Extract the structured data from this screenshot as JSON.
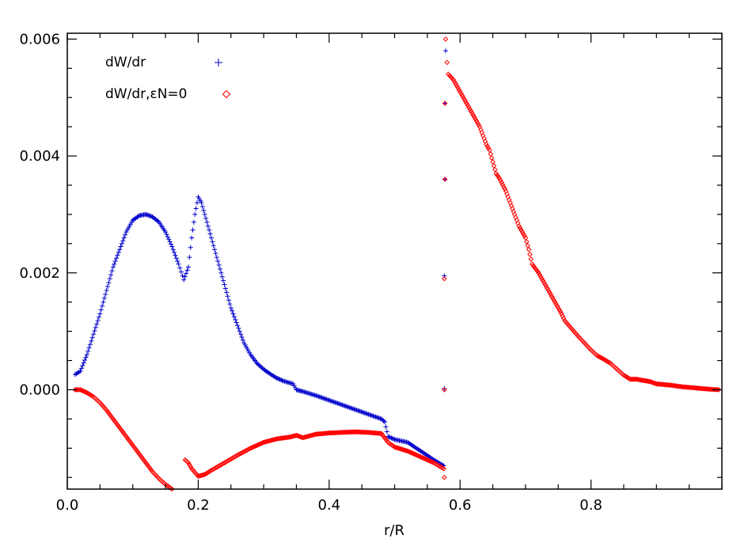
{
  "chart_data": {
    "type": "scatter",
    "title": "",
    "xlabel": "r/R",
    "ylabel": "",
    "xlim": [
      0.0,
      1.0
    ],
    "ylim": [
      -0.0017,
      0.0061
    ],
    "x_ticks": [
      0.0,
      0.2,
      0.4,
      0.6,
      0.8
    ],
    "x_tick_labels": [
      "0.0",
      "0.2",
      "0.4",
      "0.6",
      "0.8"
    ],
    "y_ticks": [
      0.0,
      0.002,
      0.004,
      0.006
    ],
    "y_tick_labels": [
      "0.000",
      "0.002",
      "0.004",
      "0.006"
    ],
    "grid": false,
    "legend_position": "top-left",
    "series": [
      {
        "name": "dW/dr",
        "marker": "plus",
        "color": "#0000cc",
        "points": [
          [
            0.012,
            0.00026
          ],
          [
            0.02,
            0.00032
          ],
          [
            0.03,
            0.0006
          ],
          [
            0.04,
            0.00095
          ],
          [
            0.05,
            0.0013
          ],
          [
            0.06,
            0.0017
          ],
          [
            0.07,
            0.0021
          ],
          [
            0.08,
            0.0024
          ],
          [
            0.09,
            0.0027
          ],
          [
            0.1,
            0.0029
          ],
          [
            0.11,
            0.00298
          ],
          [
            0.12,
            0.003
          ],
          [
            0.13,
            0.00296
          ],
          [
            0.14,
            0.00287
          ],
          [
            0.15,
            0.0027
          ],
          [
            0.16,
            0.00245
          ],
          [
            0.17,
            0.00215
          ],
          [
            0.178,
            0.00188
          ],
          [
            0.185,
            0.0021
          ],
          [
            0.19,
            0.0026
          ],
          [
            0.195,
            0.003
          ],
          [
            0.2,
            0.0033
          ],
          [
            0.205,
            0.0032
          ],
          [
            0.21,
            0.003
          ],
          [
            0.22,
            0.0026
          ],
          [
            0.23,
            0.0022
          ],
          [
            0.24,
            0.0018
          ],
          [
            0.25,
            0.0014
          ],
          [
            0.26,
            0.0011
          ],
          [
            0.27,
            0.0008
          ],
          [
            0.28,
            0.0006
          ],
          [
            0.29,
            0.00045
          ],
          [
            0.3,
            0.00035
          ],
          [
            0.31,
            0.00027
          ],
          [
            0.32,
            0.0002
          ],
          [
            0.33,
            0.00015
          ],
          [
            0.345,
            0.0001
          ],
          [
            0.35,
            0.0
          ],
          [
            0.36,
            -3e-05
          ],
          [
            0.38,
            -0.0001
          ],
          [
            0.4,
            -0.00018
          ],
          [
            0.42,
            -0.00026
          ],
          [
            0.44,
            -0.00034
          ],
          [
            0.46,
            -0.00042
          ],
          [
            0.48,
            -0.0005
          ],
          [
            0.485,
            -0.00055
          ],
          [
            0.49,
            -0.0008
          ],
          [
            0.5,
            -0.00085
          ],
          [
            0.52,
            -0.0009
          ],
          [
            0.54,
            -0.00105
          ],
          [
            0.56,
            -0.0012
          ],
          [
            0.575,
            -0.0013
          ],
          [
            0.576,
            2e-05
          ],
          [
            0.576,
            0.00195
          ],
          [
            0.577,
            0.0036
          ],
          [
            0.577,
            0.0049
          ],
          [
            0.578,
            0.0058
          ]
        ]
      },
      {
        "name": "dW/dr,εN=0",
        "marker": "diamond",
        "color": "#ff0000",
        "points": [
          [
            0.012,
            0.0
          ],
          [
            0.02,
            0.0
          ],
          [
            0.03,
            -5e-05
          ],
          [
            0.04,
            -0.00012
          ],
          [
            0.05,
            -0.00022
          ],
          [
            0.06,
            -0.00035
          ],
          [
            0.07,
            -0.0005
          ],
          [
            0.08,
            -0.00065
          ],
          [
            0.09,
            -0.0008
          ],
          [
            0.1,
            -0.00095
          ],
          [
            0.11,
            -0.0011
          ],
          [
            0.12,
            -0.00125
          ],
          [
            0.13,
            -0.0014
          ],
          [
            0.14,
            -0.00152
          ],
          [
            0.15,
            -0.00162
          ],
          [
            0.16,
            -0.0017
          ],
          [
            0.17,
            -0.00175
          ],
          [
            0.178,
            -0.00182
          ],
          [
            0.18,
            -0.0012
          ],
          [
            0.185,
            -0.00125
          ],
          [
            0.19,
            -0.00135
          ],
          [
            0.2,
            -0.00148
          ],
          [
            0.21,
            -0.00145
          ],
          [
            0.22,
            -0.00138
          ],
          [
            0.24,
            -0.00125
          ],
          [
            0.26,
            -0.00112
          ],
          [
            0.28,
            -0.001
          ],
          [
            0.3,
            -0.0009
          ],
          [
            0.32,
            -0.00084
          ],
          [
            0.34,
            -0.00081
          ],
          [
            0.35,
            -0.00078
          ],
          [
            0.36,
            -0.00082
          ],
          [
            0.38,
            -0.00076
          ],
          [
            0.4,
            -0.00074
          ],
          [
            0.42,
            -0.00073
          ],
          [
            0.44,
            -0.00072
          ],
          [
            0.46,
            -0.00073
          ],
          [
            0.48,
            -0.00075
          ],
          [
            0.49,
            -0.0009
          ],
          [
            0.5,
            -0.00098
          ],
          [
            0.52,
            -0.00105
          ],
          [
            0.54,
            -0.00115
          ],
          [
            0.56,
            -0.00125
          ],
          [
            0.575,
            -0.00135
          ],
          [
            0.576,
            -0.0015
          ],
          [
            0.576,
            0.0
          ],
          [
            0.576,
            0.0019
          ],
          [
            0.577,
            0.0036
          ],
          [
            0.577,
            0.0049
          ],
          [
            0.578,
            0.006
          ],
          [
            0.58,
            0.0056
          ],
          [
            0.582,
            0.0054
          ],
          [
            0.59,
            0.0053
          ],
          [
            0.6,
            0.0051
          ],
          [
            0.61,
            0.0049
          ],
          [
            0.62,
            0.0047
          ],
          [
            0.63,
            0.0045
          ],
          [
            0.64,
            0.0042
          ],
          [
            0.645,
            0.0041
          ],
          [
            0.65,
            0.0039
          ],
          [
            0.655,
            0.0037
          ],
          [
            0.66,
            0.00362
          ],
          [
            0.67,
            0.0034
          ],
          [
            0.68,
            0.0031
          ],
          [
            0.69,
            0.0028
          ],
          [
            0.7,
            0.0026
          ],
          [
            0.705,
            0.0024
          ],
          [
            0.71,
            0.00215
          ],
          [
            0.72,
            0.002
          ],
          [
            0.73,
            0.0018
          ],
          [
            0.74,
            0.0016
          ],
          [
            0.75,
            0.0014
          ],
          [
            0.755,
            0.0013
          ],
          [
            0.76,
            0.00118
          ],
          [
            0.77,
            0.00105
          ],
          [
            0.78,
            0.00092
          ],
          [
            0.79,
            0.0008
          ],
          [
            0.8,
            0.00068
          ],
          [
            0.81,
            0.00058
          ],
          [
            0.82,
            0.00052
          ],
          [
            0.83,
            0.00045
          ],
          [
            0.84,
            0.00035
          ],
          [
            0.85,
            0.00025
          ],
          [
            0.86,
            0.00018
          ],
          [
            0.87,
            0.00018
          ],
          [
            0.88,
            0.00016
          ],
          [
            0.89,
            0.00014
          ],
          [
            0.9,
            0.0001
          ],
          [
            0.92,
            8e-05
          ],
          [
            0.94,
            5e-05
          ],
          [
            0.96,
            3e-05
          ],
          [
            0.98,
            1e-05
          ],
          [
            0.995,
            0.0
          ]
        ]
      }
    ]
  }
}
